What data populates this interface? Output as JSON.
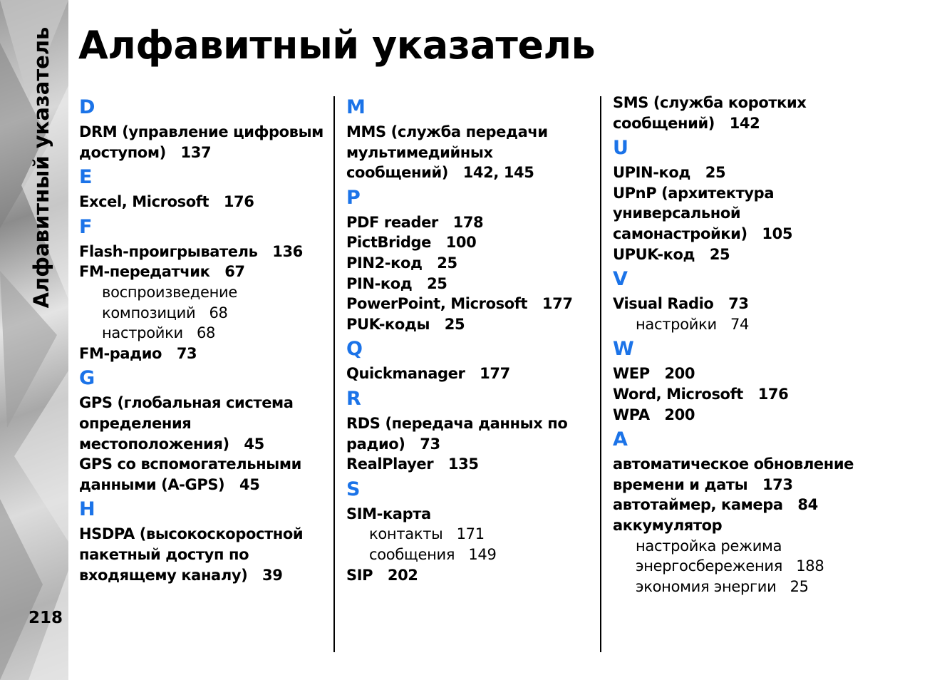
{
  "page": {
    "title": "Алфавитный указатель",
    "side_title": "Алфавитный указатель",
    "page_number": "218"
  },
  "colors": {
    "letter_accent": "#1b73e8"
  },
  "columns": [
    {
      "sections": [
        {
          "letter": "D",
          "items": [
            {
              "lines": [
                "DRM (управление цифровым",
                "доступом)"
              ],
              "pages": "137"
            }
          ]
        },
        {
          "letter": "E",
          "items": [
            {
              "lines": [
                "Excel, Microsoft"
              ],
              "pages": "176"
            }
          ]
        },
        {
          "letter": "F",
          "items": [
            {
              "lines": [
                "Flash-проигрыватель"
              ],
              "pages": "136"
            },
            {
              "lines": [
                "FM-передатчик"
              ],
              "pages": "67"
            },
            {
              "sub": true,
              "lines": [
                "воспроизведение",
                "композиций"
              ],
              "pages": "68"
            },
            {
              "sub": true,
              "lines": [
                "настройки"
              ],
              "pages": "68"
            },
            {
              "lines": [
                "FM-радио"
              ],
              "pages": "73"
            }
          ]
        },
        {
          "letter": "G",
          "items": [
            {
              "lines": [
                "GPS (глобальная система",
                "определения",
                "местоположения)"
              ],
              "pages": "45"
            },
            {
              "lines": [
                "GPS со вспомогательными",
                "данными (A-GPS)"
              ],
              "pages": "45"
            }
          ]
        },
        {
          "letter": "H",
          "items": [
            {
              "lines": [
                "HSDPA (высокоскоростной",
                "пакетный доступ по",
                "входящему каналу)"
              ],
              "pages": "39"
            }
          ]
        }
      ]
    },
    {
      "sections": [
        {
          "letter": "M",
          "items": [
            {
              "lines": [
                "MMS (служба передачи",
                "мультимедийных",
                "сообщений)"
              ],
              "pages": "142, 145"
            }
          ]
        },
        {
          "letter": "P",
          "items": [
            {
              "lines": [
                "PDF reader"
              ],
              "pages": "178"
            },
            {
              "lines": [
                "PictBridge"
              ],
              "pages": "100"
            },
            {
              "lines": [
                "PIN2-код"
              ],
              "pages": "25"
            },
            {
              "lines": [
                "PIN-код"
              ],
              "pages": "25"
            },
            {
              "lines": [
                "PowerPoint, Microsoft"
              ],
              "pages": "177"
            },
            {
              "lines": [
                "PUK-коды"
              ],
              "pages": "25"
            }
          ]
        },
        {
          "letter": "Q",
          "items": [
            {
              "lines": [
                "Quickmanager"
              ],
              "pages": "177"
            }
          ]
        },
        {
          "letter": "R",
          "items": [
            {
              "lines": [
                "RDS (передача данных по",
                "радио)"
              ],
              "pages": "73"
            },
            {
              "lines": [
                "RealPlayer"
              ],
              "pages": "135"
            }
          ]
        },
        {
          "letter": "S",
          "items": [
            {
              "lines": [
                "SIM-карта"
              ],
              "pages": ""
            },
            {
              "sub": true,
              "lines": [
                "контакты"
              ],
              "pages": "171"
            },
            {
              "sub": true,
              "lines": [
                "сообщения"
              ],
              "pages": "149"
            },
            {
              "lines": [
                "SIP"
              ],
              "pages": "202"
            }
          ]
        }
      ]
    },
    {
      "sections": [
        {
          "letter": "",
          "items": [
            {
              "lines": [
                "SMS (служба коротких",
                "сообщений)"
              ],
              "pages": "142"
            }
          ]
        },
        {
          "letter": "U",
          "items": [
            {
              "lines": [
                "UPIN-код"
              ],
              "pages": "25"
            },
            {
              "lines": [
                "UPnP (архитектура",
                "универсальной",
                "самонастройки)"
              ],
              "pages": "105"
            },
            {
              "lines": [
                "UPUK-код"
              ],
              "pages": "25"
            }
          ]
        },
        {
          "letter": "V",
          "items": [
            {
              "lines": [
                "Visual Radio"
              ],
              "pages": "73"
            },
            {
              "sub": true,
              "lines": [
                "настройки"
              ],
              "pages": "74"
            }
          ]
        },
        {
          "letter": "W",
          "items": [
            {
              "lines": [
                "WEP"
              ],
              "pages": "200"
            },
            {
              "lines": [
                "Word, Microsoft"
              ],
              "pages": "176"
            },
            {
              "lines": [
                "WPA"
              ],
              "pages": "200"
            }
          ]
        },
        {
          "letter": "А",
          "items": [
            {
              "lines": [
                "автоматическое обновление",
                "времени и даты"
              ],
              "pages": "173"
            },
            {
              "lines": [
                "автотаймер, камера"
              ],
              "pages": "84"
            },
            {
              "lines": [
                "аккумулятор"
              ],
              "pages": ""
            },
            {
              "sub": true,
              "lines": [
                "настройка режима",
                "энергосбережения"
              ],
              "pages": "188"
            },
            {
              "sub": true,
              "lines": [
                "экономия энергии"
              ],
              "pages": "25"
            }
          ]
        }
      ]
    }
  ]
}
